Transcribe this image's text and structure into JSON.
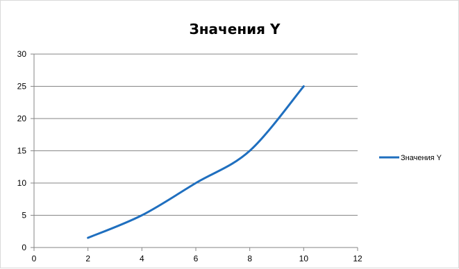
{
  "chart_data": {
    "type": "line",
    "title": "Значения Y",
    "xlabel": "",
    "ylabel": "",
    "xlim": [
      0,
      12
    ],
    "ylim": [
      0,
      30
    ],
    "x_ticks": [
      0,
      2,
      4,
      6,
      8,
      10,
      12
    ],
    "y_ticks": [
      0,
      5,
      10,
      15,
      20,
      25,
      30
    ],
    "grid": "horizontal",
    "legend_position": "right",
    "smooth": true,
    "series": [
      {
        "name": "Значения Y",
        "color": "#1f6fbf",
        "x": [
          2,
          4,
          6,
          8,
          10
        ],
        "y": [
          1.5,
          5,
          10,
          15,
          25
        ]
      }
    ]
  }
}
